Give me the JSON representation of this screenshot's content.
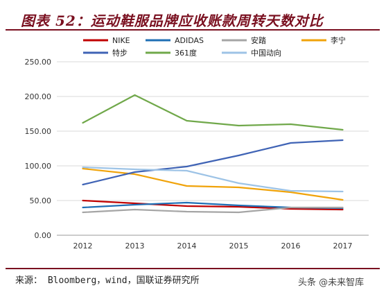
{
  "title": "图表 52：运动鞋服品牌应收账款周转天数对比",
  "source": "来源： Bloomberg，wind，国联证券研究所",
  "watermark": "头条 @未来智库",
  "chart_data": {
    "type": "line",
    "x": [
      "2012",
      "2013",
      "2014",
      "2015",
      "2016",
      "2017"
    ],
    "ylim": [
      0,
      250
    ],
    "yticks": [
      "0.00",
      "50.00",
      "100.00",
      "150.00",
      "200.00",
      "250.00"
    ],
    "grid": true,
    "legend_position": "top",
    "series": [
      {
        "name": "NIKE",
        "color": "#c00000",
        "values": [
          50,
          46,
          42,
          41,
          38,
          37
        ]
      },
      {
        "name": "ADIDAS",
        "color": "#1f6fb5",
        "values": [
          40,
          44,
          47,
          43,
          40,
          39
        ]
      },
      {
        "name": "安踏",
        "color": "#a5a5a5",
        "values": [
          33,
          37,
          34,
          33,
          40,
          40
        ]
      },
      {
        "name": "李宁",
        "color": "#f0a30a",
        "values": [
          96,
          88,
          71,
          69,
          62,
          51
        ]
      },
      {
        "name": "特步",
        "color": "#3f63b5",
        "values": [
          73,
          91,
          99,
          115,
          133,
          137
        ]
      },
      {
        "name": "361度",
        "color": "#70a84a",
        "values": [
          162,
          202,
          165,
          158,
          160,
          152
        ]
      },
      {
        "name": "中国动向",
        "color": "#9dc3e6",
        "values": [
          98,
          95,
          93,
          75,
          64,
          63
        ]
      }
    ]
  }
}
